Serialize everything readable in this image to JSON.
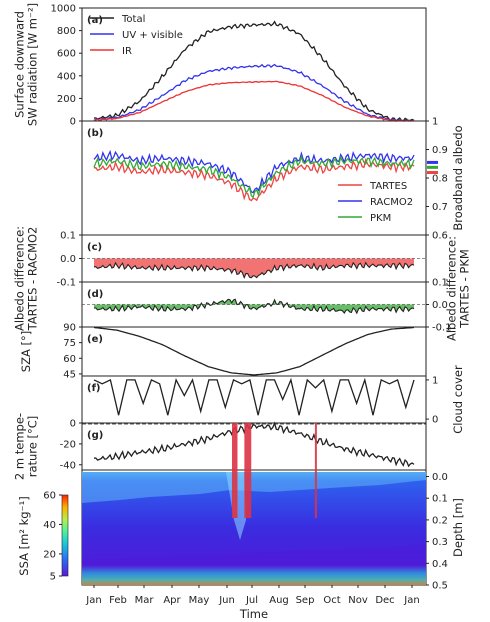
{
  "chart_data": [
    {
      "panel": "(a)",
      "type": "line",
      "ylabel": [
        "Surface downward",
        "SW  radiation [W m⁻²]"
      ],
      "ylim": [
        0,
        1000
      ],
      "yticks": [
        0,
        200,
        400,
        600,
        800,
        1000
      ],
      "legend": "top-left",
      "series": [
        {
          "name": "Total",
          "color": "#222222",
          "values": [
            18,
            50,
            175,
            395,
            640,
            790,
            835,
            850,
            860,
            770,
            555,
            300,
            100,
            15,
            5
          ]
        },
        {
          "name": "UV + visible",
          "color": "#3333ee",
          "values": [
            10,
            28,
            100,
            225,
            360,
            440,
            470,
            485,
            490,
            430,
            310,
            170,
            55,
            8,
            3
          ]
        },
        {
          "name": "IR",
          "color": "#ee3333",
          "values": [
            8,
            22,
            75,
            170,
            260,
            320,
            340,
            345,
            350,
            310,
            225,
            120,
            42,
            6,
            2
          ]
        }
      ]
    },
    {
      "panel": "(b)",
      "type": "line",
      "ylabel2": "Broadband albedo",
      "ylim": [
        0.6,
        1.0
      ],
      "yticks": [
        0.6,
        0.7,
        0.8,
        0.9,
        1.0
      ],
      "legend": "bottom-right",
      "series": [
        {
          "name": "TARTES",
          "color": "#ee4444",
          "values": [
            0.83,
            0.84,
            0.82,
            0.83,
            0.82,
            0.81,
            0.78,
            0.72,
            0.8,
            0.84,
            0.83,
            0.84,
            0.85,
            0.84,
            0.84
          ]
        },
        {
          "name": "RACMO2",
          "color": "#3333ee",
          "values": [
            0.87,
            0.88,
            0.86,
            0.87,
            0.86,
            0.85,
            0.82,
            0.75,
            0.84,
            0.87,
            0.86,
            0.87,
            0.88,
            0.87,
            0.87
          ]
        },
        {
          "name": "PKM",
          "color": "#33aa33",
          "values": [
            0.85,
            0.86,
            0.84,
            0.85,
            0.84,
            0.83,
            0.8,
            0.74,
            0.82,
            0.86,
            0.85,
            0.86,
            0.86,
            0.85,
            0.85
          ]
        }
      ]
    },
    {
      "panel": "(c)",
      "type": "area",
      "ylabel": [
        "Albedo difference:",
        "TARTES - RACMO2"
      ],
      "ylim": [
        -0.1,
        0.1
      ],
      "yticks": [
        -0.1,
        0.0,
        0.1
      ],
      "series": [
        {
          "name": "",
          "color": "#ee4444",
          "values": [
            -0.04,
            -0.03,
            -0.04,
            -0.04,
            -0.04,
            -0.04,
            -0.05,
            -0.08,
            -0.04,
            -0.03,
            -0.04,
            -0.03,
            -0.03,
            -0.03,
            -0.03
          ]
        }
      ]
    },
    {
      "panel": "(d)",
      "type": "area",
      "ylabel2": [
        "Albedo difference:",
        "TARTES - PKM"
      ],
      "ylim": [
        -0.1,
        0.1
      ],
      "yticks": [
        -0.1,
        0.0,
        0.1
      ],
      "series": [
        {
          "name": "",
          "color": "#33aa33",
          "values": [
            -0.02,
            -0.02,
            -0.01,
            -0.02,
            -0.02,
            0.0,
            0.02,
            -0.02,
            0.01,
            -0.02,
            -0.02,
            -0.03,
            -0.02,
            -0.02,
            -0.02
          ]
        }
      ]
    },
    {
      "panel": "(e)",
      "type": "line",
      "ylabel": "SZA [°]",
      "ylim": [
        43,
        90
      ],
      "yticks": [
        45,
        60,
        75,
        90
      ],
      "series": [
        {
          "name": "",
          "color": "#222222",
          "values": [
            89.5,
            87,
            81,
            73,
            62,
            52,
            46,
            44,
            46,
            52,
            63,
            74,
            83,
            88,
            89.5
          ]
        }
      ]
    },
    {
      "panel": "(f)",
      "type": "line",
      "ylabel2": "Cloud cover",
      "ylim": [
        -0.1,
        1.1
      ],
      "yticks": [
        0,
        1
      ],
      "series": [
        {
          "name": "",
          "color": "#222222",
          "values": [
            1,
            0.9,
            1,
            0.1,
            1,
            1,
            0.4,
            1,
            0.9,
            0.1,
            1,
            0.6,
            1,
            0.2,
            1,
            1,
            0.3,
            1,
            0.9,
            1,
            0.1,
            1,
            1,
            0.5,
            1,
            0.1,
            1,
            0.8,
            1,
            0.2,
            1,
            1,
            0.4,
            1,
            0.1,
            1,
            0.9,
            1,
            0.3,
            1
          ]
        }
      ]
    },
    {
      "panel": "(g)",
      "type": "line",
      "ylabel": [
        "2 m tempe-",
        "rature [°C]"
      ],
      "ylim": [
        -45,
        0
      ],
      "yticks": [
        -40,
        -20,
        0
      ],
      "melt_events": [
        {
          "start": 0.436,
          "end": 0.452
        },
        {
          "start": 0.472,
          "end": 0.492
        },
        {
          "start": 0.677,
          "end": 0.681
        }
      ],
      "series": [
        {
          "name": "",
          "color": "#222222",
          "values": [
            -35,
            -32,
            -28,
            -25,
            -20,
            -15,
            -8,
            -3,
            -4,
            -10,
            -18,
            -25,
            -30,
            -35,
            -40
          ]
        }
      ]
    },
    {
      "panel": "(h)",
      "type": "heatmap",
      "ylabel2": "Depth [m]",
      "ylim": [
        0.5,
        -0.03
      ],
      "yticks": [
        0.0,
        0.1,
        0.2,
        0.3,
        0.4,
        0.5
      ],
      "colorbar": {
        "label": "SSA [m² kg⁻¹]",
        "ticks": [
          5,
          20,
          40,
          60
        ],
        "range": [
          5,
          60
        ]
      },
      "x_ticks": [
        "Jan",
        "Feb",
        "Mar",
        "Apr",
        "May",
        "Jun",
        "Jul",
        "Aug",
        "Sep",
        "Oct",
        "Nov",
        "Dec",
        "Jan"
      ],
      "xlabel": "Time"
    }
  ]
}
